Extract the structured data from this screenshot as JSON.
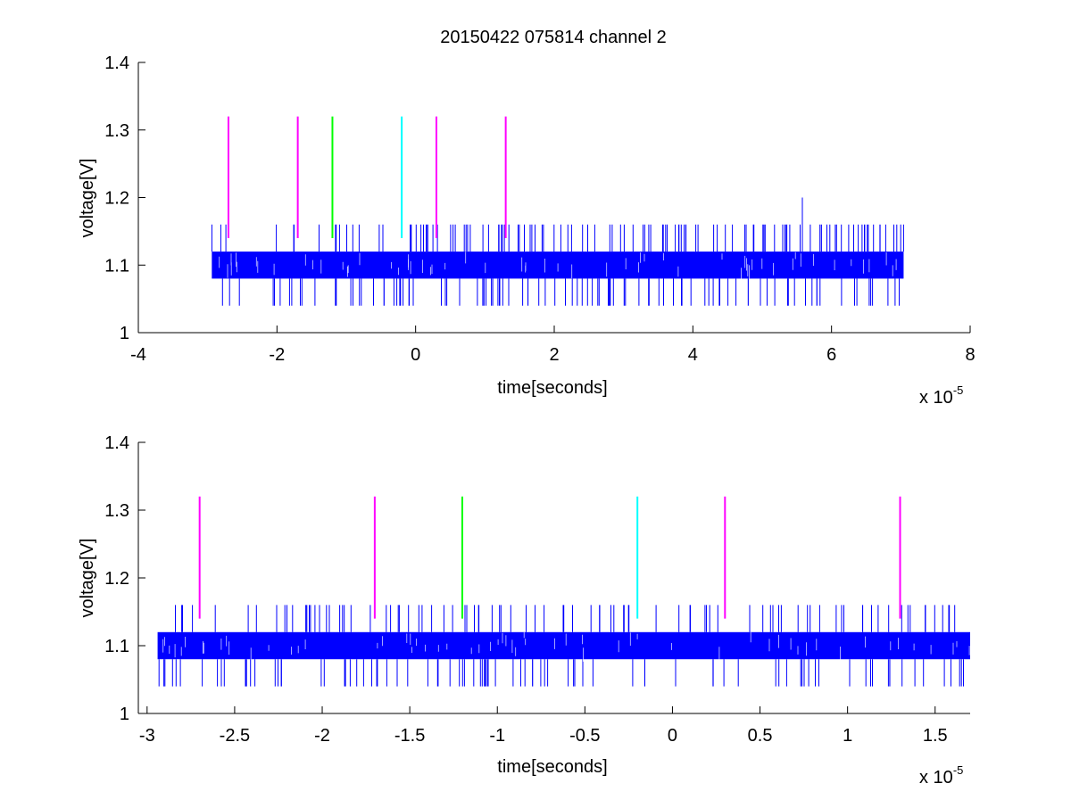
{
  "figure": {
    "title": "20150422 075814 channel 2"
  },
  "colors": {
    "signal": "#0000ff",
    "magenta": "#ff00ff",
    "green": "#00ff00",
    "cyan": "#00ffff",
    "axes": "#000000",
    "background": "#ffffff"
  },
  "chart_data": [
    {
      "type": "line",
      "title": "20150422 075814 channel 2",
      "xlabel": "time[seconds]",
      "ylabel": "voltage[V]",
      "x_multiplier_label": "x 10",
      "x_multiplier_exponent": "-5",
      "xlim": [
        -4,
        8
      ],
      "ylim": [
        1,
        1.4
      ],
      "xticks": [
        -4,
        -2,
        0,
        2,
        4,
        6,
        8
      ],
      "xtick_labels": [
        "-4",
        "-2",
        "0",
        "2",
        "4",
        "6",
        "8"
      ],
      "yticks": [
        1,
        1.1,
        1.2,
        1.3,
        1.4
      ],
      "ytick_labels": [
        "1",
        "1.1",
        "1.2",
        "1.3",
        "1.4"
      ],
      "grid": false,
      "series": [
        {
          "color": "#0000ff",
          "x_range": [
            -2.94,
            7.04
          ],
          "band": [
            1.08,
            1.12
          ],
          "spike_high": 1.16,
          "spike_low": 1.04,
          "extra_spikes": [
            {
              "x": 5.58,
              "y": 1.2
            }
          ]
        }
      ],
      "markers": [
        {
          "x": -2.7,
          "y_range": [
            1.14,
            1.32
          ],
          "color": "#ff00ff"
        },
        {
          "x": -1.7,
          "y_range": [
            1.14,
            1.32
          ],
          "color": "#ff00ff"
        },
        {
          "x": -1.2,
          "y_range": [
            1.14,
            1.32
          ],
          "color": "#00ff00"
        },
        {
          "x": -0.2,
          "y_range": [
            1.14,
            1.32
          ],
          "color": "#00ffff"
        },
        {
          "x": 0.3,
          "y_range": [
            1.14,
            1.32
          ],
          "color": "#ff00ff"
        },
        {
          "x": 1.3,
          "y_range": [
            1.14,
            1.32
          ],
          "color": "#ff00ff"
        }
      ]
    },
    {
      "type": "line",
      "xlabel": "time[seconds]",
      "ylabel": "voltage[V]",
      "x_multiplier_label": "x 10",
      "x_multiplier_exponent": "-5",
      "xlim": [
        -3.05,
        1.7
      ],
      "ylim": [
        1,
        1.4
      ],
      "xticks": [
        -3,
        -2.5,
        -2,
        -1.5,
        -1,
        -0.5,
        0,
        0.5,
        1,
        1.5
      ],
      "xtick_labels": [
        "-3",
        "-2.5",
        "-2",
        "-1.5",
        "-1",
        "-0.5",
        "0",
        "0.5",
        "1",
        "1.5"
      ],
      "yticks": [
        1,
        1.1,
        1.2,
        1.3,
        1.4
      ],
      "ytick_labels": [
        "1",
        "1.1",
        "1.2",
        "1.3",
        "1.4"
      ],
      "grid": false,
      "series": [
        {
          "color": "#0000ff",
          "x_range": [
            -2.94,
            1.7
          ],
          "band": [
            1.08,
            1.12
          ],
          "spike_high": 1.16,
          "spike_low": 1.04,
          "extra_spikes": []
        }
      ],
      "markers": [
        {
          "x": -2.7,
          "y_range": [
            1.14,
            1.32
          ],
          "color": "#ff00ff"
        },
        {
          "x": -1.7,
          "y_range": [
            1.14,
            1.32
          ],
          "color": "#ff00ff"
        },
        {
          "x": -1.2,
          "y_range": [
            1.14,
            1.32
          ],
          "color": "#00ff00"
        },
        {
          "x": -0.2,
          "y_range": [
            1.14,
            1.32
          ],
          "color": "#00ffff"
        },
        {
          "x": 0.3,
          "y_range": [
            1.14,
            1.32
          ],
          "color": "#ff00ff"
        },
        {
          "x": 1.3,
          "y_range": [
            1.14,
            1.32
          ],
          "color": "#ff00ff"
        }
      ]
    }
  ]
}
